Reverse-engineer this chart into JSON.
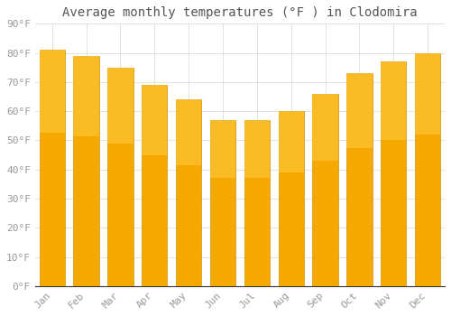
{
  "title": "Average monthly temperatures (°F ) in Clodomira",
  "months": [
    "Jan",
    "Feb",
    "Mar",
    "Apr",
    "May",
    "Jun",
    "Jul",
    "Aug",
    "Sep",
    "Oct",
    "Nov",
    "Dec"
  ],
  "values": [
    81,
    79,
    75,
    69,
    64,
    57,
    57,
    60,
    66,
    73,
    77,
    80
  ],
  "bar_color_bottom": "#F5A800",
  "bar_color_top": "#FFD060",
  "bar_edge_color": "#D4920A",
  "background_color": "#FFFFFF",
  "ylim": [
    0,
    90
  ],
  "yticks": [
    0,
    10,
    20,
    30,
    40,
    50,
    60,
    70,
    80,
    90
  ],
  "ytick_labels": [
    "0°F",
    "10°F",
    "20°F",
    "30°F",
    "40°F",
    "50°F",
    "60°F",
    "70°F",
    "80°F",
    "90°F"
  ],
  "title_fontsize": 10,
  "tick_fontsize": 8,
  "grid_color": "#DDDDDD",
  "tick_color": "#999999",
  "font_family": "monospace"
}
